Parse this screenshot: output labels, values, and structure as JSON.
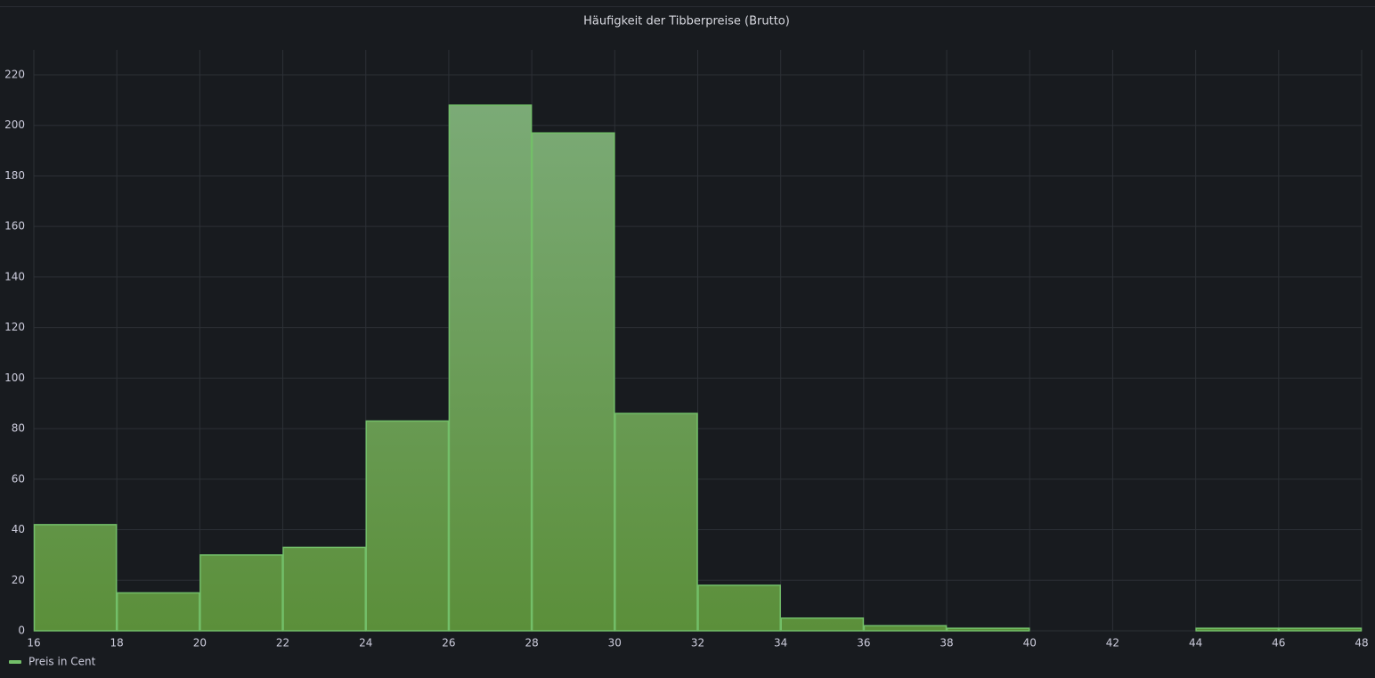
{
  "chart_data": {
    "type": "histogram",
    "title": "Häufigkeit der Tibberpreise (Brutto)",
    "bins": [
      16,
      18,
      20,
      22,
      24,
      26,
      28,
      30,
      32,
      34,
      36,
      38,
      40,
      42,
      44,
      46,
      48
    ],
    "series": [
      {
        "name": "Preis in Cent",
        "color": "#73bf69",
        "values": [
          42,
          15,
          30,
          33,
          83,
          208,
          197,
          86,
          18,
          5,
          2,
          1,
          0,
          0,
          1,
          1
        ]
      }
    ],
    "xlim": [
      16,
      48
    ],
    "xticks": [
      16,
      18,
      20,
      22,
      24,
      26,
      28,
      30,
      32,
      34,
      36,
      38,
      40,
      42,
      44,
      46,
      48
    ],
    "ylim": [
      0,
      220
    ],
    "yticks": [
      0,
      20,
      40,
      60,
      80,
      100,
      120,
      140,
      160,
      180,
      200,
      220
    ],
    "grid": true,
    "legend": "bottom-left"
  }
}
